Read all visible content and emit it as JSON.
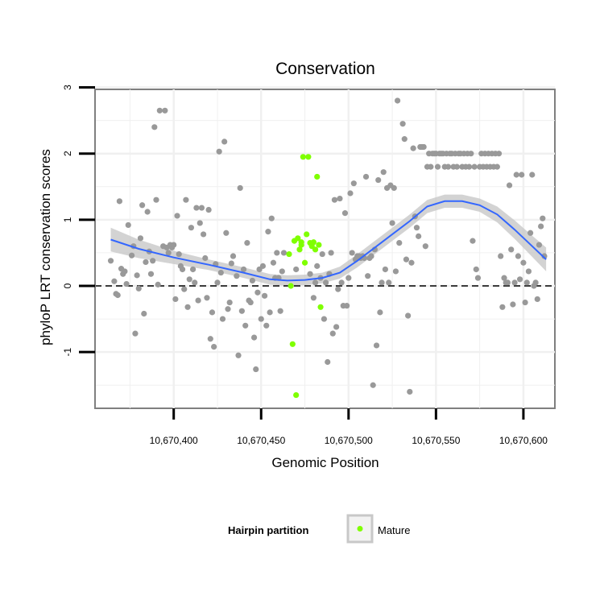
{
  "chart_data": {
    "type": "scatter",
    "title": "Conservation",
    "xlabel": "Genomic Position",
    "ylabel": "phyloP LRT conservation scores",
    "xlim": [
      10670355,
      10670618
    ],
    "ylim": [
      -1.85,
      2.97
    ],
    "x_ticks": [
      10670400,
      10670450,
      10670500,
      10670550,
      10670600
    ],
    "x_tick_labels": [
      "10,670,400",
      "10,670,450",
      "10,670,500",
      "10,670,550",
      "10,670,600"
    ],
    "y_ticks": [
      -1,
      0,
      1,
      2,
      3
    ],
    "y_tick_labels": [
      "-1",
      "0",
      "1",
      "2",
      "3"
    ],
    "grid": true,
    "reference_line": {
      "y": 0,
      "style": "dashed"
    },
    "legend": {
      "title": "Hairpin partition",
      "position": "bottom",
      "entries": [
        {
          "label": "Mature",
          "color": "#7fff00"
        }
      ]
    },
    "colors": {
      "other": "#999999",
      "mature": "#7fff00",
      "smooth": "#3366ff",
      "band": "#c8c8c8",
      "panel": "#ffffff",
      "gridline": "#f0f0f0",
      "border": "#7f7f7f"
    },
    "series": [
      {
        "points": [
          [
            10670364,
            0.38
          ],
          [
            10670366,
            0.07
          ],
          [
            10670367,
            -0.12
          ],
          [
            10670368,
            -0.14
          ],
          [
            10670369,
            1.28
          ],
          [
            10670370,
            0.26
          ],
          [
            10670371,
            0.18
          ],
          [
            10670372,
            0.22
          ],
          [
            10670373,
            0.03
          ],
          [
            10670374,
            0.92
          ],
          [
            10670376,
            0.46
          ],
          [
            10670377,
            0.6
          ],
          [
            10670378,
            -0.72
          ],
          [
            10670379,
            0.16
          ],
          [
            10670380,
            -0.04
          ],
          [
            10670381,
            0.72
          ],
          [
            10670382,
            1.22
          ],
          [
            10670383,
            -0.42
          ],
          [
            10670384,
            0.36
          ],
          [
            10670385,
            1.12
          ],
          [
            10670386,
            0.52
          ],
          [
            10670387,
            0.18
          ],
          [
            10670388,
            0.38
          ],
          [
            10670389,
            2.4
          ],
          [
            10670390,
            1.3
          ],
          [
            10670391,
            0.02
          ],
          [
            10670392,
            2.65
          ],
          [
            10670394,
            0.6
          ],
          [
            10670395,
            2.65
          ],
          [
            10670396,
            0.58
          ],
          [
            10670397,
            0.5
          ],
          [
            10670398,
            0.62
          ],
          [
            10670399,
            0.58
          ],
          [
            10670400,
            0.62
          ],
          [
            10670401,
            -0.2
          ],
          [
            10670402,
            1.06
          ],
          [
            10670403,
            0.48
          ],
          [
            10670404,
            0.3
          ],
          [
            10670405,
            0.25
          ],
          [
            10670406,
            -0.05
          ],
          [
            10670407,
            1.3
          ],
          [
            10670408,
            -0.32
          ],
          [
            10670409,
            0.1
          ],
          [
            10670410,
            0.88
          ],
          [
            10670411,
            0.25
          ],
          [
            10670412,
            0.05
          ],
          [
            10670413,
            1.18
          ],
          [
            10670414,
            -0.22
          ],
          [
            10670415,
            0.95
          ],
          [
            10670416,
            1.18
          ],
          [
            10670417,
            0.78
          ],
          [
            10670418,
            0.42
          ],
          [
            10670419,
            -0.18
          ],
          [
            10670420,
            1.15
          ],
          [
            10670421,
            -0.8
          ],
          [
            10670422,
            -0.4
          ],
          [
            10670423,
            -0.92
          ],
          [
            10670424,
            0.33
          ],
          [
            10670425,
            0.05
          ],
          [
            10670426,
            2.03
          ],
          [
            10670427,
            0.2
          ],
          [
            10670428,
            -0.5
          ],
          [
            10670429,
            2.18
          ],
          [
            10670430,
            0.8
          ],
          [
            10670431,
            -0.35
          ],
          [
            10670432,
            -0.25
          ],
          [
            10670433,
            0.34
          ],
          [
            10670434,
            0.45
          ],
          [
            10670436,
            0.15
          ],
          [
            10670437,
            -1.05
          ],
          [
            10670438,
            1.48
          ],
          [
            10670439,
            -0.38
          ],
          [
            10670440,
            0.25
          ],
          [
            10670441,
            -0.6
          ],
          [
            10670442,
            0.65
          ],
          [
            10670443,
            -0.22
          ],
          [
            10670444,
            -0.25
          ],
          [
            10670445,
            0.08
          ],
          [
            10670446,
            -0.78
          ],
          [
            10670447,
            -1.26
          ],
          [
            10670448,
            -0.1
          ],
          [
            10670449,
            0.25
          ],
          [
            10670450,
            -0.5
          ],
          [
            10670451,
            0.3
          ],
          [
            10670452,
            -0.15
          ],
          [
            10670453,
            -0.6
          ],
          [
            10670454,
            0.82
          ],
          [
            10670455,
            -0.4
          ],
          [
            10670456,
            1.02
          ],
          [
            10670457,
            0.35
          ],
          [
            10670458,
            0.12
          ],
          [
            10670459,
            0.5
          ],
          [
            10670460,
            0.12
          ],
          [
            10670461,
            -0.38
          ],
          [
            10670462,
            0.22
          ],
          [
            10670463,
            0.5
          ],
          [
            10670470,
            0.25
          ],
          [
            10670478,
            0.18
          ],
          [
            10670480,
            -0.18
          ],
          [
            10670481,
            0.05
          ],
          [
            10670482,
            0.3
          ],
          [
            10670484,
            0.12
          ],
          [
            10670485,
            0.48
          ],
          [
            10670486,
            -0.5
          ],
          [
            10670487,
            0.05
          ],
          [
            10670488,
            -1.15
          ],
          [
            10670489,
            0.18
          ],
          [
            10670490,
            0.5
          ],
          [
            10670491,
            -0.72
          ],
          [
            10670492,
            1.3
          ],
          [
            10670493,
            -0.62
          ],
          [
            10670494,
            -0.05
          ],
          [
            10670495,
            1.32
          ],
          [
            10670496,
            0.05
          ],
          [
            10670497,
            -0.3
          ],
          [
            10670498,
            1.1
          ],
          [
            10670499,
            -0.3
          ],
          [
            10670500,
            0.12
          ],
          [
            10670501,
            1.4
          ],
          [
            10670502,
            0.5
          ],
          [
            10670503,
            1.55
          ],
          [
            10670504,
            0.4
          ],
          [
            10670505,
            0.45
          ],
          [
            10670506,
            0.45
          ],
          [
            10670507,
            0.42
          ],
          [
            10670508,
            0.45
          ],
          [
            10670509,
            0.42
          ],
          [
            10670510,
            1.65
          ],
          [
            10670511,
            0.15
          ],
          [
            10670512,
            0.42
          ],
          [
            10670513,
            0.45
          ],
          [
            10670514,
            -1.5
          ],
          [
            10670515,
            0.55
          ],
          [
            10670516,
            -0.9
          ],
          [
            10670517,
            1.6
          ],
          [
            10670518,
            -0.4
          ],
          [
            10670519,
            0.05
          ],
          [
            10670520,
            1.72
          ],
          [
            10670521,
            0.25
          ],
          [
            10670522,
            1.48
          ],
          [
            10670523,
            0.05
          ],
          [
            10670524,
            1.52
          ],
          [
            10670525,
            0.95
          ],
          [
            10670526,
            1.48
          ],
          [
            10670527,
            0.22
          ],
          [
            10670528,
            2.8
          ],
          [
            10670529,
            0.65
          ],
          [
            10670531,
            2.45
          ],
          [
            10670532,
            2.22
          ],
          [
            10670533,
            0.4
          ],
          [
            10670534,
            -0.45
          ],
          [
            10670535,
            -1.6
          ],
          [
            10670536,
            0.35
          ],
          [
            10670537,
            2.08
          ],
          [
            10670538,
            1.05
          ],
          [
            10670539,
            0.88
          ],
          [
            10670540,
            0.75
          ],
          [
            10670541,
            2.1
          ],
          [
            10670542,
            2.1
          ],
          [
            10670543,
            2.1
          ],
          [
            10670544,
            0.6
          ],
          [
            10670545,
            1.8
          ],
          [
            10670546,
            2.0
          ],
          [
            10670547,
            1.8
          ],
          [
            10670548,
            2.0
          ],
          [
            10670549,
            2.0
          ],
          [
            10670550,
            2.0
          ],
          [
            10670551,
            1.8
          ],
          [
            10670552,
            2.0
          ],
          [
            10670553,
            2.0
          ],
          [
            10670554,
            2.0
          ],
          [
            10670555,
            1.8
          ],
          [
            10670556,
            2.0
          ],
          [
            10670557,
            1.8
          ],
          [
            10670558,
            2.0
          ],
          [
            10670559,
            2.0
          ],
          [
            10670560,
            1.8
          ],
          [
            10670561,
            2.0
          ],
          [
            10670562,
            1.8
          ],
          [
            10670563,
            2.0
          ],
          [
            10670564,
            2.0
          ],
          [
            10670565,
            1.8
          ],
          [
            10670566,
            2.0
          ],
          [
            10670567,
            1.8
          ],
          [
            10670568,
            2.0
          ],
          [
            10670569,
            1.8
          ],
          [
            10670570,
            2.0
          ],
          [
            10670571,
            0.68
          ],
          [
            10670572,
            1.8
          ],
          [
            10670573,
            0.25
          ],
          [
            10670574,
            0.12
          ],
          [
            10670575,
            1.8
          ],
          [
            10670576,
            2.0
          ],
          [
            10670577,
            1.8
          ],
          [
            10670578,
            2.0
          ],
          [
            10670579,
            1.8
          ],
          [
            10670580,
            2.0
          ],
          [
            10670581,
            1.8
          ],
          [
            10670582,
            2.0
          ],
          [
            10670583,
            1.8
          ],
          [
            10670584,
            2.0
          ],
          [
            10670585,
            1.8
          ],
          [
            10670586,
            2.0
          ],
          [
            10670587,
            0.45
          ],
          [
            10670588,
            -0.32
          ],
          [
            10670589,
            0.12
          ],
          [
            10670590,
            0.05
          ],
          [
            10670591,
            0.05
          ],
          [
            10670592,
            1.52
          ],
          [
            10670593,
            0.55
          ],
          [
            10670594,
            -0.28
          ],
          [
            10670595,
            0.05
          ],
          [
            10670596,
            1.68
          ],
          [
            10670597,
            0.45
          ],
          [
            10670598,
            0.1
          ],
          [
            10670599,
            1.68
          ],
          [
            10670600,
            0.35
          ],
          [
            10670601,
            -0.25
          ],
          [
            10670602,
            0.05
          ],
          [
            10670603,
            0.22
          ],
          [
            10670604,
            0.8
          ],
          [
            10670605,
            1.68
          ],
          [
            10670606,
            0.0
          ],
          [
            10670607,
            0.05
          ],
          [
            10670608,
            -0.2
          ],
          [
            10670609,
            0.62
          ],
          [
            10670610,
            0.9
          ],
          [
            10670611,
            1.02
          ],
          [
            10670612,
            0.45
          ]
        ]
      },
      {
        "name": "Mature",
        "points": [
          [
            10670466,
            0.48
          ],
          [
            10670467,
            0.0
          ],
          [
            10670468,
            -0.88
          ],
          [
            10670470,
            -1.65
          ],
          [
            10670471,
            0.72
          ],
          [
            10670472,
            0.55
          ],
          [
            10670473,
            0.62
          ],
          [
            10670474,
            1.95
          ],
          [
            10670475,
            0.35
          ],
          [
            10670476,
            0.78
          ],
          [
            10670477,
            1.95
          ],
          [
            10670478,
            0.65
          ],
          [
            10670479,
            0.6
          ],
          [
            10670480,
            0.66
          ],
          [
            10670481,
            0.55
          ],
          [
            10670482,
            1.65
          ],
          [
            10670483,
            0.62
          ],
          [
            10670484,
            -0.32
          ],
          [
            10670469,
            0.68
          ],
          [
            10670473,
            0.66
          ]
        ]
      }
    ],
    "smooth_line": {
      "x": [
        10670364,
        10670380,
        10670400,
        10670420,
        10670440,
        10670455,
        10670465,
        10670475,
        10670485,
        10670495,
        10670505,
        10670515,
        10670525,
        10670535,
        10670545,
        10670555,
        10670565,
        10670575,
        10670585,
        10670595,
        10670605,
        10670613
      ],
      "y": [
        0.7,
        0.56,
        0.43,
        0.32,
        0.2,
        0.1,
        0.08,
        0.09,
        0.12,
        0.2,
        0.38,
        0.58,
        0.78,
        0.98,
        1.2,
        1.28,
        1.28,
        1.22,
        1.08,
        0.85,
        0.6,
        0.4
      ],
      "band_width": [
        0.18,
        0.14,
        0.1,
        0.08,
        0.08,
        0.08,
        0.08,
        0.08,
        0.08,
        0.09,
        0.1,
        0.1,
        0.1,
        0.1,
        0.1,
        0.1,
        0.1,
        0.1,
        0.12,
        0.14,
        0.16,
        0.18
      ]
    }
  }
}
